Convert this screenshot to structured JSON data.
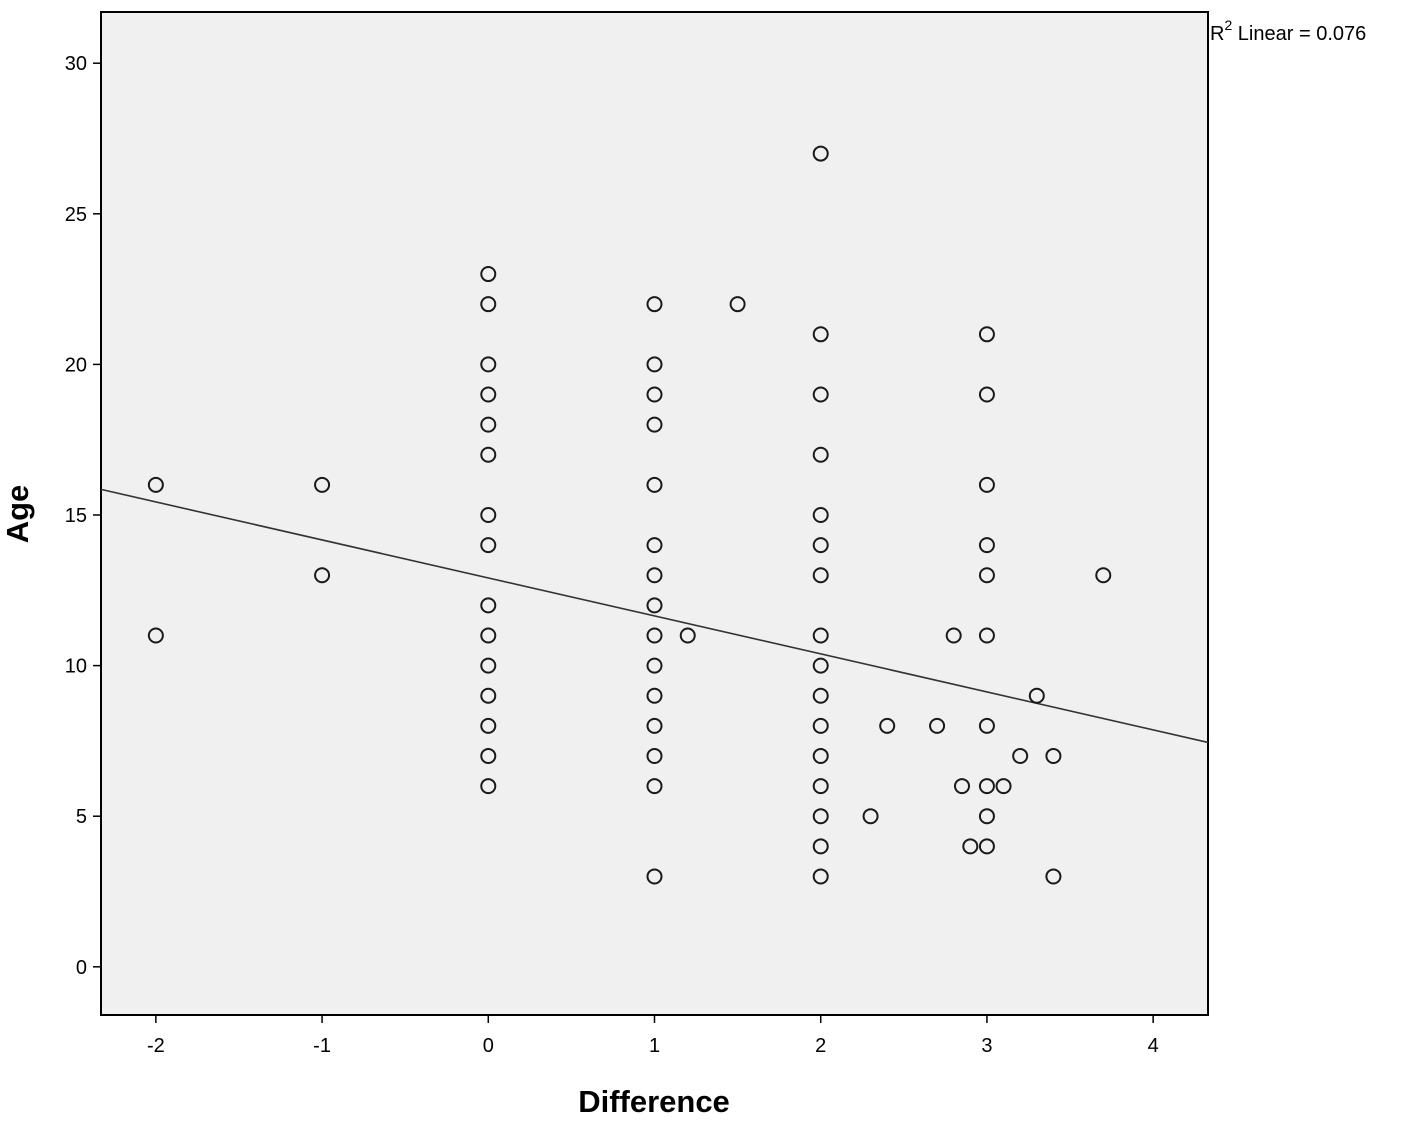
{
  "chart_data": {
    "type": "scatter",
    "xlabel": "Difference",
    "ylabel": "Age",
    "xlim": [
      -2.33,
      4.33
    ],
    "ylim": [
      -1.6,
      31.7
    ],
    "xticks": [
      -2,
      -1,
      0,
      1,
      2,
      3,
      4
    ],
    "yticks": [
      0,
      5,
      10,
      15,
      20,
      25,
      30
    ],
    "grid": false,
    "fit_line": {
      "label_prefix": "R",
      "label_sup": "2",
      "label_rest": " Linear = 0.076",
      "x": [
        -2.33,
        4.33
      ],
      "y": [
        15.85,
        7.45
      ]
    },
    "series": [
      {
        "points": [
          [
            -2,
            16
          ],
          [
            -2,
            11
          ],
          [
            -1,
            16
          ],
          [
            -1,
            13
          ],
          [
            0,
            23
          ],
          [
            0,
            22
          ],
          [
            0,
            20
          ],
          [
            0,
            19
          ],
          [
            0,
            18
          ],
          [
            0,
            17
          ],
          [
            0,
            15
          ],
          [
            0,
            14
          ],
          [
            0,
            12
          ],
          [
            0,
            11
          ],
          [
            0,
            10
          ],
          [
            0,
            9
          ],
          [
            0,
            8
          ],
          [
            0,
            7
          ],
          [
            0,
            6
          ],
          [
            1,
            22
          ],
          [
            1,
            20
          ],
          [
            1,
            19
          ],
          [
            1,
            18
          ],
          [
            1,
            16
          ],
          [
            1,
            14
          ],
          [
            1,
            13
          ],
          [
            1,
            12
          ],
          [
            1,
            11
          ],
          [
            1,
            10
          ],
          [
            1,
            9
          ],
          [
            1,
            8
          ],
          [
            1,
            7
          ],
          [
            1,
            6
          ],
          [
            1,
            3
          ],
          [
            1.2,
            11
          ],
          [
            1.5,
            22
          ],
          [
            2,
            27
          ],
          [
            2,
            21
          ],
          [
            2,
            19
          ],
          [
            2,
            17
          ],
          [
            2,
            15
          ],
          [
            2,
            14
          ],
          [
            2,
            13
          ],
          [
            2,
            11
          ],
          [
            2,
            10
          ],
          [
            2,
            9
          ],
          [
            2,
            8
          ],
          [
            2,
            7
          ],
          [
            2,
            6
          ],
          [
            2,
            5
          ],
          [
            2,
            4
          ],
          [
            2,
            3
          ],
          [
            2.3,
            5
          ],
          [
            2.4,
            8
          ],
          [
            2.7,
            8
          ],
          [
            2.8,
            11
          ],
          [
            2.85,
            6
          ],
          [
            2.9,
            4
          ],
          [
            3,
            21
          ],
          [
            3,
            19
          ],
          [
            3,
            16
          ],
          [
            3,
            14
          ],
          [
            3,
            13
          ],
          [
            3,
            11
          ],
          [
            3,
            8
          ],
          [
            3,
            6
          ],
          [
            3,
            5
          ],
          [
            3,
            4
          ],
          [
            3.1,
            6
          ],
          [
            3.2,
            7
          ],
          [
            3.3,
            9
          ],
          [
            3.4,
            7
          ],
          [
            3.4,
            3
          ],
          [
            3.7,
            13
          ]
        ]
      }
    ]
  }
}
